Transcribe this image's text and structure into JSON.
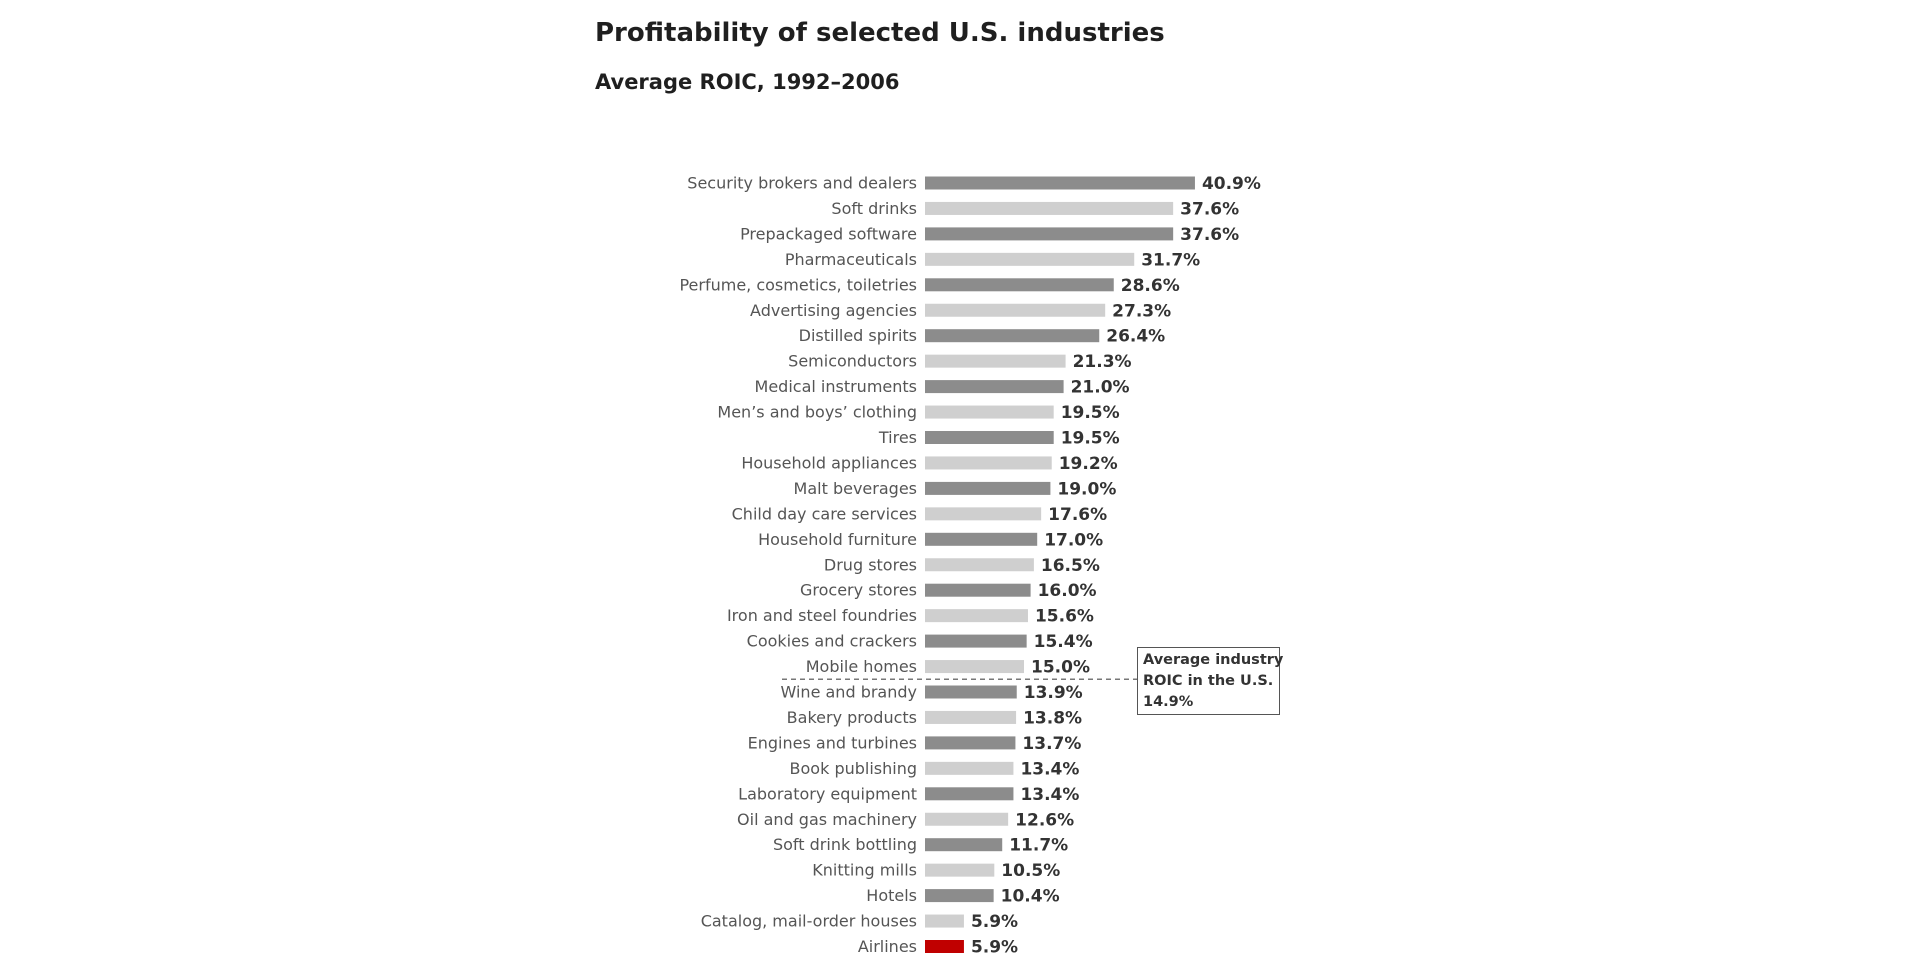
{
  "chart_data": {
    "type": "bar",
    "orientation": "horizontal",
    "title": "Profitability of selected U.S. industries",
    "subtitle": "Average ROIC, 1992–2006",
    "xlabel": "",
    "ylabel": "",
    "grid": false,
    "xlim": [
      0,
      45
    ],
    "categories": [
      "Security brokers and dealers",
      "Soft drinks",
      "Prepackaged software",
      "Pharmaceuticals",
      "Perfume, cosmetics, toiletries",
      "Advertising agencies",
      "Distilled spirits",
      "Semiconductors",
      "Medical instruments",
      "Men’s and boys’ clothing",
      "Tires",
      "Household appliances",
      "Malt beverages",
      "Child day care services",
      "Household furniture",
      "Drug stores",
      "Grocery stores",
      "Iron and steel foundries",
      "Cookies and crackers",
      "Mobile homes",
      "Wine and brandy",
      "Bakery products",
      "Engines and turbines",
      "Book publishing",
      "Laboratory equipment",
      "Oil and gas machinery",
      "Soft drink bottling",
      "Knitting mills",
      "Hotels",
      "Catalog, mail-order houses",
      "Airlines"
    ],
    "values": [
      40.9,
      37.6,
      37.6,
      31.7,
      28.6,
      27.3,
      26.4,
      21.3,
      21.0,
      19.5,
      19.5,
      19.2,
      19.0,
      17.6,
      17.0,
      16.5,
      16.0,
      15.6,
      15.4,
      15.0,
      13.9,
      13.8,
      13.7,
      13.4,
      13.4,
      12.6,
      11.7,
      10.5,
      10.4,
      5.9,
      5.9
    ],
    "value_labels": [
      "40.9%",
      "37.6%",
      "37.6%",
      "31.7%",
      "28.6%",
      "27.3%",
      "26.4%",
      "21.3%",
      "21.0%",
      "19.5%",
      "19.5%",
      "19.2%",
      "19.0%",
      "17.6%",
      "17.0%",
      "16.5%",
      "16.0%",
      "15.6%",
      "15.4%",
      "15.0%",
      "13.9%",
      "13.8%",
      "13.7%",
      "13.4%",
      "13.4%",
      "12.6%",
      "11.7%",
      "10.5%",
      "10.4%",
      "5.9%",
      "5.9%"
    ],
    "bar_colors": {
      "dark": "#8c8c8c",
      "light": "#cfcfcf",
      "highlight": "#c00000"
    },
    "highlight_category": "Airlines",
    "reference_line": {
      "value": 14.9,
      "label_lines": [
        "Average industry",
        "ROIC in the U.S.",
        "14.9%"
      ],
      "style": "dashed",
      "color": "#777777"
    }
  }
}
